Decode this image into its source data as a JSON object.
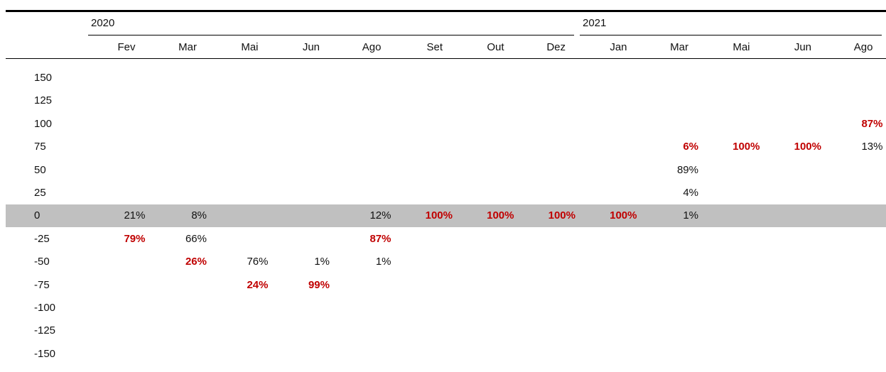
{
  "table": {
    "years": [
      {
        "label": "2020",
        "months": [
          "Fev",
          "Mar",
          "Mai",
          "Jun",
          "Ago",
          "Set",
          "Out",
          "Dez"
        ]
      },
      {
        "label": "2021",
        "months": [
          "Jan",
          "Mar",
          "Mai",
          "Jun",
          "Ago"
        ]
      }
    ],
    "rows": [
      {
        "label": "150",
        "cells": [
          null,
          null,
          null,
          null,
          null,
          null,
          null,
          null,
          null,
          null,
          null,
          null,
          null
        ]
      },
      {
        "label": "125",
        "cells": [
          null,
          null,
          null,
          null,
          null,
          null,
          null,
          null,
          null,
          null,
          null,
          null,
          null
        ]
      },
      {
        "label": "100",
        "cells": [
          null,
          null,
          null,
          null,
          null,
          null,
          null,
          null,
          null,
          null,
          null,
          null,
          {
            "text": "87%",
            "emphasis": true
          }
        ]
      },
      {
        "label": "75",
        "cells": [
          null,
          null,
          null,
          null,
          null,
          null,
          null,
          null,
          null,
          {
            "text": "6%",
            "emphasis": true
          },
          {
            "text": "100%",
            "emphasis": true
          },
          {
            "text": "100%",
            "emphasis": true
          },
          {
            "text": "13%"
          }
        ]
      },
      {
        "label": "50",
        "cells": [
          null,
          null,
          null,
          null,
          null,
          null,
          null,
          null,
          null,
          {
            "text": "89%"
          },
          null,
          null,
          null
        ]
      },
      {
        "label": "25",
        "cells": [
          null,
          null,
          null,
          null,
          null,
          null,
          null,
          null,
          null,
          {
            "text": "4%"
          },
          null,
          null,
          null
        ]
      },
      {
        "label": "0",
        "shaded": true,
        "cells": [
          {
            "text": "21%"
          },
          {
            "text": "8%"
          },
          null,
          null,
          {
            "text": "12%"
          },
          {
            "text": "100%",
            "emphasis": true
          },
          {
            "text": "100%",
            "emphasis": true
          },
          {
            "text": "100%",
            "emphasis": true
          },
          {
            "text": "100%",
            "emphasis": true
          },
          {
            "text": "1%"
          },
          null,
          null,
          null
        ]
      },
      {
        "label": "-25",
        "cells": [
          {
            "text": "79%",
            "emphasis": true
          },
          {
            "text": "66%"
          },
          null,
          null,
          {
            "text": "87%",
            "emphasis": true
          },
          null,
          null,
          null,
          null,
          null,
          null,
          null,
          null
        ]
      },
      {
        "label": "-50",
        "cells": [
          null,
          {
            "text": "26%",
            "emphasis": true
          },
          {
            "text": "76%"
          },
          {
            "text": "1%"
          },
          {
            "text": "1%"
          },
          null,
          null,
          null,
          null,
          null,
          null,
          null,
          null
        ]
      },
      {
        "label": "-75",
        "cells": [
          null,
          null,
          {
            "text": "24%",
            "emphasis": true
          },
          {
            "text": "99%",
            "emphasis": true
          },
          null,
          null,
          null,
          null,
          null,
          null,
          null,
          null,
          null
        ]
      },
      {
        "label": "-100",
        "cells": [
          null,
          null,
          null,
          null,
          null,
          null,
          null,
          null,
          null,
          null,
          null,
          null,
          null
        ]
      },
      {
        "label": "-125",
        "cells": [
          null,
          null,
          null,
          null,
          null,
          null,
          null,
          null,
          null,
          null,
          null,
          null,
          null
        ]
      },
      {
        "label": "-150",
        "cells": [
          null,
          null,
          null,
          null,
          null,
          null,
          null,
          null,
          null,
          null,
          null,
          null,
          null
        ]
      }
    ]
  }
}
